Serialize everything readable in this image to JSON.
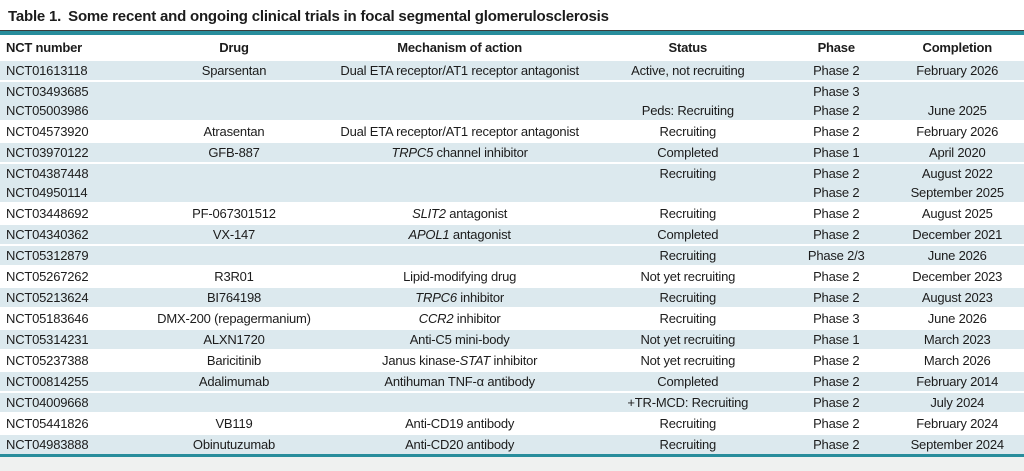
{
  "title": {
    "label": "Table 1.",
    "text": "Some recent and ongoing clinical trials in focal segmental glomerulosclerosis"
  },
  "colors": {
    "accent_teal": "#288d9c",
    "row_shade": "#dce9ee"
  },
  "table": {
    "columns": [
      "NCT number",
      "Drug",
      "Mechanism of action",
      "Status",
      "Phase",
      "Completion"
    ],
    "rows": [
      {
        "nct": "NCT01613118",
        "drug": "Sparsentan",
        "moa_pre": "Dual ETA receptor/AT1 receptor antagonist",
        "moa_em": "",
        "moa_post": "",
        "status": "Active, not recruiting",
        "phase": "Phase 2",
        "completion": "February 2026",
        "shade": "blue",
        "cont": false
      },
      {
        "nct": "NCT03493685",
        "drug": "",
        "moa_pre": "",
        "moa_em": "",
        "moa_post": "",
        "status": "",
        "phase": "Phase 3",
        "completion": "",
        "shade": "blue",
        "cont": false
      },
      {
        "nct": "NCT05003986",
        "drug": "",
        "moa_pre": "",
        "moa_em": "",
        "moa_post": "",
        "status": "Peds: Recruiting",
        "phase": "Phase 2",
        "completion": "June 2025",
        "shade": "blue",
        "cont": true
      },
      {
        "nct": "NCT04573920",
        "drug": "Atrasentan",
        "moa_pre": "Dual ETA receptor/AT1 receptor antagonist",
        "moa_em": "",
        "moa_post": "",
        "status": "Recruiting",
        "phase": "Phase 2",
        "completion": "February 2026",
        "shade": "white",
        "cont": false
      },
      {
        "nct": "NCT03970122",
        "drug": "GFB-887",
        "moa_pre": "",
        "moa_em": "TRPC5",
        "moa_post": " channel inhibitor",
        "status": "Completed",
        "phase": "Phase 1",
        "completion": "April 2020",
        "shade": "blue",
        "cont": false
      },
      {
        "nct": "NCT04387448",
        "drug": "",
        "moa_pre": "",
        "moa_em": "",
        "moa_post": "",
        "status": "Recruiting",
        "phase": "Phase 2",
        "completion": "August 2022",
        "shade": "blue",
        "cont": false
      },
      {
        "nct": "NCT04950114",
        "drug": "",
        "moa_pre": "",
        "moa_em": "",
        "moa_post": "",
        "status": "",
        "phase": "Phase 2",
        "completion": "September 2025",
        "shade": "blue",
        "cont": true
      },
      {
        "nct": "NCT03448692",
        "drug": "PF-067301512",
        "moa_pre": "",
        "moa_em": "SLIT2",
        "moa_post": " antagonist",
        "status": "Recruiting",
        "phase": "Phase 2",
        "completion": "August 2025",
        "shade": "white",
        "cont": false
      },
      {
        "nct": "NCT04340362",
        "drug": "VX-147",
        "moa_pre": "",
        "moa_em": "APOL1",
        "moa_post": " antagonist",
        "status": "Completed",
        "phase": "Phase 2",
        "completion": "December 2021",
        "shade": "blue",
        "cont": false
      },
      {
        "nct": "NCT05312879",
        "drug": "",
        "moa_pre": "",
        "moa_em": "",
        "moa_post": "",
        "status": "Recruiting",
        "phase": "Phase 2/3",
        "completion": "June 2026",
        "shade": "blue",
        "cont": false
      },
      {
        "nct": "NCT05267262",
        "drug": "R3R01",
        "moa_pre": "Lipid-modifying drug",
        "moa_em": "",
        "moa_post": "",
        "status": "Not yet recruiting",
        "phase": "Phase 2",
        "completion": "December 2023",
        "shade": "white",
        "cont": false
      },
      {
        "nct": "NCT05213624",
        "drug": "BI764198",
        "moa_pre": "",
        "moa_em": "TRPC6",
        "moa_post": " inhibitor",
        "status": "Recruiting",
        "phase": "Phase 2",
        "completion": "August 2023",
        "shade": "blue",
        "cont": false
      },
      {
        "nct": "NCT05183646",
        "drug": "DMX-200 (repagermanium)",
        "moa_pre": "",
        "moa_em": "CCR2",
        "moa_post": " inhibitor",
        "status": "Recruiting",
        "phase": "Phase 3",
        "completion": "June 2026",
        "shade": "white",
        "cont": false
      },
      {
        "nct": "NCT05314231",
        "drug": "ALXN1720",
        "moa_pre": "Anti-C5 mini-body",
        "moa_em": "",
        "moa_post": "",
        "status": "Not yet recruiting",
        "phase": "Phase 1",
        "completion": "March 2023",
        "shade": "blue",
        "cont": false
      },
      {
        "nct": "NCT05237388",
        "drug": "Baricitinib",
        "moa_pre": "Janus kinase-",
        "moa_em": "STAT",
        "moa_post": " inhibitor",
        "status": "Not yet recruiting",
        "phase": "Phase 2",
        "completion": "March 2026",
        "shade": "white",
        "cont": false
      },
      {
        "nct": "NCT00814255",
        "drug": "Adalimumab",
        "moa_pre": "Antihuman TNF-α antibody",
        "moa_em": "",
        "moa_post": "",
        "status": "Completed",
        "phase": "Phase 2",
        "completion": "February 2014",
        "shade": "blue",
        "cont": false
      },
      {
        "nct": "NCT04009668",
        "drug": "",
        "moa_pre": "",
        "moa_em": "",
        "moa_post": "",
        "status": "+TR-MCD: Recruiting",
        "phase": "Phase 2",
        "completion": "July 2024",
        "shade": "blue",
        "cont": false
      },
      {
        "nct": "NCT05441826",
        "drug": "VB119",
        "moa_pre": "Anti-CD19 antibody",
        "moa_em": "",
        "moa_post": "",
        "status": "Recruiting",
        "phase": "Phase 2",
        "completion": "February 2024",
        "shade": "white",
        "cont": false
      },
      {
        "nct": "NCT04983888",
        "drug": "Obinutuzumab",
        "moa_pre": "Anti-CD20 antibody",
        "moa_em": "",
        "moa_post": "",
        "status": "Recruiting",
        "phase": "Phase 2",
        "completion": "September 2024",
        "shade": "blue",
        "cont": false
      }
    ]
  }
}
